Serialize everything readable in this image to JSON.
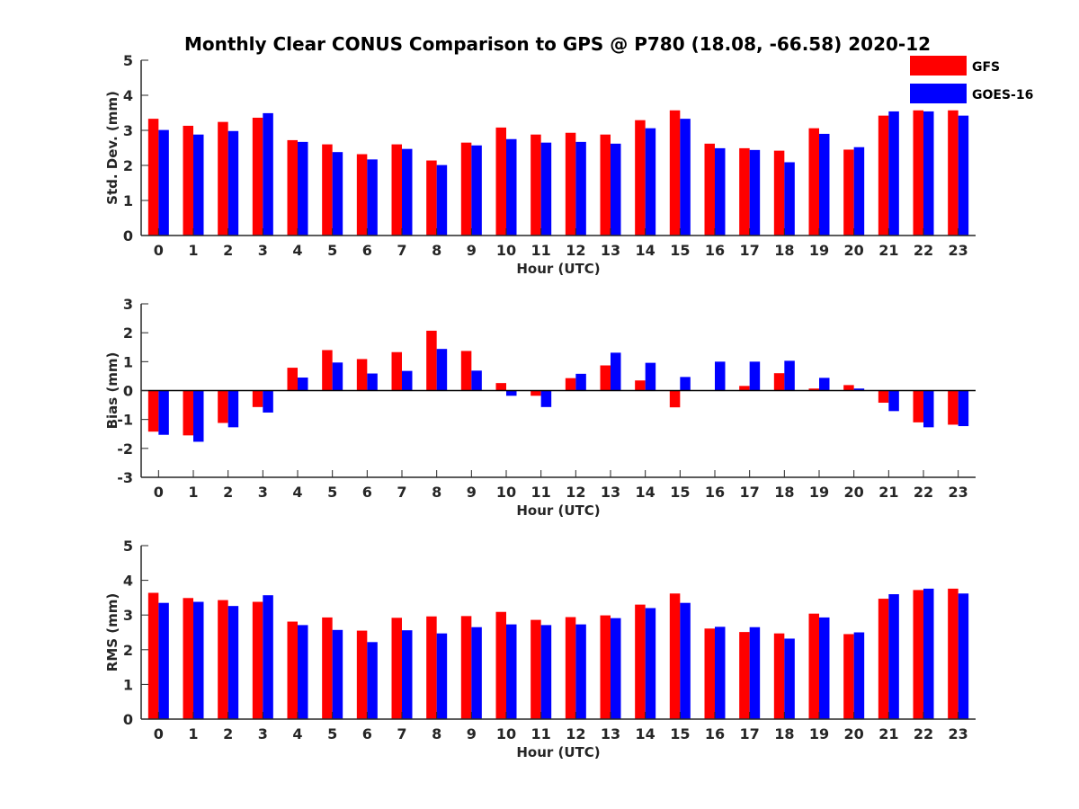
{
  "figure": {
    "title": "Monthly Clear CONUS Comparison to GPS @ P780 (18.08, -66.58) 2020-12"
  },
  "legend": {
    "placement": "top-right",
    "entries": [
      {
        "name": "GFS",
        "color": "#ff0000"
      },
      {
        "name": "GOES-16",
        "color": "#0000ff"
      }
    ]
  },
  "chart_data": [
    {
      "type": "bar",
      "ylabel": "Std. Dev. (mm)",
      "xlabel": "Hour (UTC)",
      "ylim": [
        0,
        5
      ],
      "yticks": [
        0,
        1,
        2,
        3,
        4,
        5
      ],
      "categories": [
        "0",
        "1",
        "2",
        "3",
        "4",
        "5",
        "6",
        "7",
        "8",
        "9",
        "10",
        "11",
        "12",
        "13",
        "14",
        "15",
        "16",
        "17",
        "18",
        "19",
        "20",
        "21",
        "22",
        "23"
      ],
      "series": [
        {
          "name": "GFS",
          "color": "#ff0000",
          "values": [
            3.33,
            3.13,
            3.24,
            3.36,
            2.72,
            2.6,
            2.32,
            2.6,
            2.14,
            2.65,
            3.08,
            2.88,
            2.93,
            2.88,
            3.29,
            3.57,
            2.62,
            2.49,
            2.42,
            3.06,
            2.45,
            3.42,
            3.57,
            3.57
          ]
        },
        {
          "name": "GOES-16",
          "color": "#0000ff",
          "values": [
            3.01,
            2.88,
            2.98,
            3.49,
            2.67,
            2.38,
            2.17,
            2.47,
            2.01,
            2.57,
            2.75,
            2.65,
            2.67,
            2.62,
            3.06,
            3.33,
            2.49,
            2.44,
            2.09,
            2.9,
            2.52,
            3.54,
            3.54,
            3.42
          ]
        }
      ]
    },
    {
      "type": "bar",
      "ylabel": "Bias (mm)",
      "xlabel": "Hour (UTC)",
      "ylim": [
        -3,
        3
      ],
      "yticks": [
        -3,
        -2,
        -1,
        0,
        1,
        2,
        3
      ],
      "zero_line": true,
      "categories": [
        "0",
        "1",
        "2",
        "3",
        "4",
        "5",
        "6",
        "7",
        "8",
        "9",
        "10",
        "11",
        "12",
        "13",
        "14",
        "15",
        "16",
        "17",
        "18",
        "19",
        "20",
        "21",
        "22",
        "23"
      ],
      "series": [
        {
          "name": "GFS",
          "color": "#ff0000",
          "values": [
            -1.42,
            -1.55,
            -1.12,
            -0.57,
            0.79,
            1.4,
            1.09,
            1.33,
            2.07,
            1.37,
            0.26,
            -0.18,
            0.43,
            0.87,
            0.35,
            -0.58,
            0.0,
            0.16,
            0.6,
            0.07,
            0.19,
            -0.42,
            -1.1,
            -1.18
          ]
        },
        {
          "name": "GOES-16",
          "color": "#0000ff",
          "values": [
            -1.53,
            -1.77,
            -1.27,
            -0.76,
            0.45,
            0.97,
            0.59,
            0.68,
            1.44,
            0.69,
            -0.18,
            -0.57,
            0.58,
            1.31,
            0.96,
            0.47,
            1.0,
            1.0,
            1.03,
            0.44,
            0.07,
            -0.71,
            -1.27,
            -1.23
          ]
        }
      ]
    },
    {
      "type": "bar",
      "ylabel": "RMS (mm)",
      "xlabel": "Hour (UTC)",
      "ylim": [
        0,
        5
      ],
      "yticks": [
        0,
        1,
        2,
        3,
        4,
        5
      ],
      "categories": [
        "0",
        "1",
        "2",
        "3",
        "4",
        "5",
        "6",
        "7",
        "8",
        "9",
        "10",
        "11",
        "12",
        "13",
        "14",
        "15",
        "16",
        "17",
        "18",
        "19",
        "20",
        "21",
        "22",
        "23"
      ],
      "series": [
        {
          "name": "GFS",
          "color": "#ff0000",
          "values": [
            3.64,
            3.49,
            3.43,
            3.38,
            2.81,
            2.93,
            2.55,
            2.92,
            2.96,
            2.97,
            3.09,
            2.86,
            2.94,
            2.99,
            3.3,
            3.62,
            2.61,
            2.51,
            2.47,
            3.04,
            2.45,
            3.47,
            3.72,
            3.76
          ]
        },
        {
          "name": "GOES-16",
          "color": "#0000ff",
          "values": [
            3.35,
            3.38,
            3.26,
            3.57,
            2.71,
            2.57,
            2.22,
            2.56,
            2.47,
            2.65,
            2.73,
            2.71,
            2.73,
            2.91,
            3.2,
            3.35,
            2.66,
            2.65,
            2.32,
            2.93,
            2.5,
            3.6,
            3.76,
            3.62
          ]
        }
      ]
    }
  ]
}
